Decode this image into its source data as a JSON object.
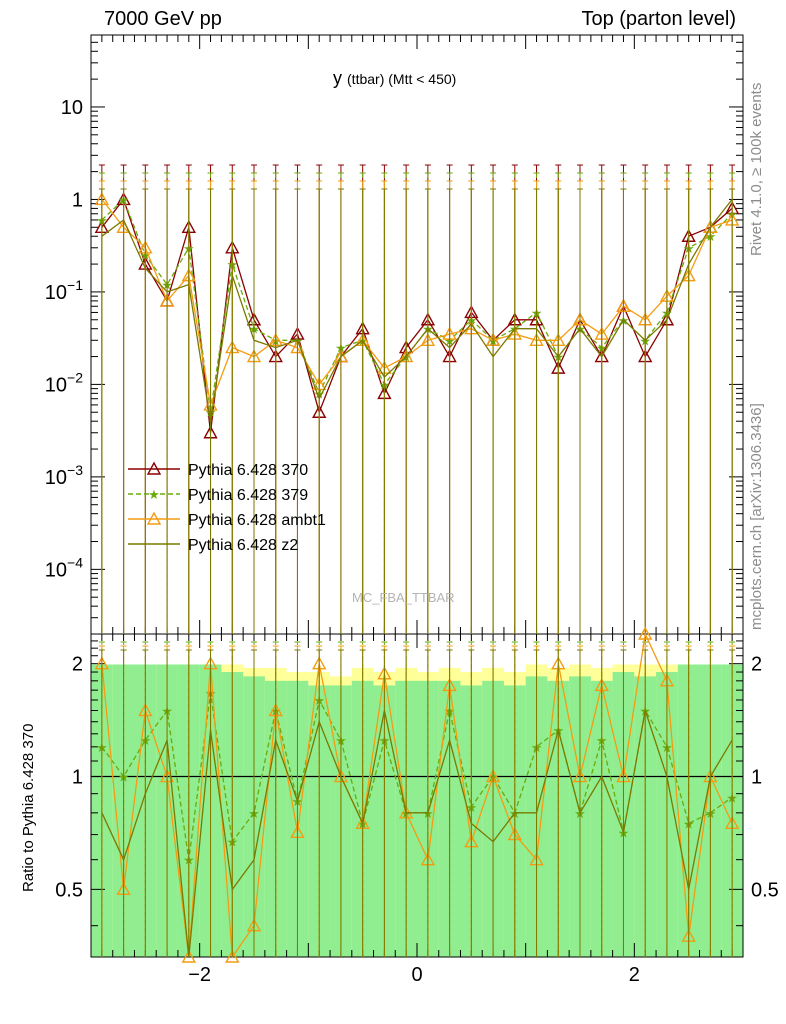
{
  "header": {
    "left": "7000 GeV pp",
    "right": "Top (parton level)"
  },
  "side_labels": {
    "rivet": "Rivet 4.1.0, ≥ 100k events",
    "mcplots": "mcplots.cern.ch [arXiv:1306.3436]"
  },
  "watermark": "MC_FBA_TTBAR",
  "colors": {
    "370": "#8b0000",
    "379": "#6aaa0a",
    "ambt1": "#f39c12",
    "z2": "#7a7a00",
    "band_green": "#90ee90",
    "band_yellow": "#ffff99"
  },
  "chart_data": [
    {
      "type": "line",
      "title": "y",
      "title_sub": "(ttbar) (Mtt < 450)",
      "xlabel": "",
      "ylabel": "",
      "xlim": [
        -3.0,
        3.0
      ],
      "ylim": [
        2e-05,
        60
      ],
      "yscale": "log",
      "x_ticks": [
        -2,
        0,
        2
      ],
      "y_ticks": [
        {
          "value": 10,
          "label": "10"
        },
        {
          "value": 1,
          "label": "1"
        },
        {
          "value": 0.1,
          "label": "10^-1"
        },
        {
          "value": 0.01,
          "label": "10^-2"
        },
        {
          "value": 0.001,
          "label": "10^-3"
        },
        {
          "value": 0.0001,
          "label": "10^-4"
        }
      ],
      "x": [
        -2.9,
        -2.7,
        -2.5,
        -2.3,
        -2.1,
        -1.9,
        -1.7,
        -1.5,
        -1.3,
        -1.1,
        -0.9,
        -0.7,
        -0.5,
        -0.3,
        -0.1,
        0.1,
        0.3,
        0.5,
        0.7,
        0.9,
        1.1,
        1.3,
        1.5,
        1.7,
        1.9,
        2.1,
        2.3,
        2.5,
        2.7,
        2.9
      ],
      "series": [
        {
          "name": "Pythia 6.428 370",
          "style": "solid",
          "marker": "open-triangle",
          "values": [
            0.5,
            1.0,
            0.2,
            0.08,
            0.5,
            0.003,
            0.3,
            0.05,
            0.02,
            0.035,
            0.005,
            0.02,
            0.04,
            0.008,
            0.025,
            0.05,
            0.02,
            0.06,
            0.03,
            0.05,
            0.05,
            0.015,
            0.05,
            0.02,
            0.07,
            0.02,
            0.05,
            0.4,
            0.5,
            0.8
          ]
        },
        {
          "name": "Pythia 6.428 379",
          "style": "dashed",
          "marker": "star",
          "values": [
            0.6,
            1.0,
            0.25,
            0.12,
            0.3,
            0.005,
            0.2,
            0.04,
            0.03,
            0.03,
            0.008,
            0.025,
            0.03,
            0.01,
            0.02,
            0.04,
            0.03,
            0.05,
            0.03,
            0.04,
            0.06,
            0.02,
            0.04,
            0.025,
            0.05,
            0.03,
            0.06,
            0.3,
            0.4,
            0.7
          ]
        },
        {
          "name": "Pythia 6.428 ambt1",
          "style": "solid",
          "marker": "open-triangle",
          "values": [
            1.0,
            0.5,
            0.3,
            0.08,
            0.15,
            0.006,
            0.025,
            0.02,
            0.03,
            0.025,
            0.01,
            0.02,
            0.03,
            0.015,
            0.02,
            0.03,
            0.035,
            0.04,
            0.03,
            0.035,
            0.03,
            0.03,
            0.05,
            0.035,
            0.07,
            0.05,
            0.09,
            0.15,
            0.5,
            0.6
          ]
        },
        {
          "name": "Pythia 6.428 z2",
          "style": "solid",
          "marker": "none",
          "values": [
            0.4,
            0.6,
            0.18,
            0.1,
            0.12,
            0.004,
            0.15,
            0.03,
            0.025,
            0.03,
            0.007,
            0.02,
            0.03,
            0.012,
            0.02,
            0.04,
            0.025,
            0.045,
            0.02,
            0.04,
            0.04,
            0.02,
            0.04,
            0.02,
            0.05,
            0.03,
            0.05,
            0.2,
            0.5,
            1.0
          ]
        }
      ],
      "legend": "center-left"
    },
    {
      "type": "line",
      "xlabel": "",
      "ylabel": "Ratio to Pythia 6.428 370",
      "xlim": [
        -3.0,
        3.0
      ],
      "ylim": [
        0.33,
        2.4
      ],
      "yscale": "log",
      "y_ticks": [
        {
          "value": 2,
          "label": "2"
        },
        {
          "value": 1,
          "label": "1"
        },
        {
          "value": 0.5,
          "label": "0.5"
        }
      ],
      "x_ticks": [
        {
          "value": -2,
          "label": "−2"
        },
        {
          "value": 0,
          "label": "0"
        },
        {
          "value": 2,
          "label": "2"
        }
      ],
      "reference_line": 1,
      "band_green_halfwidth": [
        0.99,
        0.99,
        0.99,
        0.99,
        0.99,
        0.99,
        0.9,
        0.85,
        0.8,
        0.8,
        0.75,
        0.75,
        0.8,
        0.75,
        0.8,
        0.8,
        0.8,
        0.75,
        0.8,
        0.75,
        0.85,
        0.8,
        0.85,
        0.8,
        0.9,
        0.85,
        0.9,
        0.99,
        0.99,
        0.99
      ],
      "band_yellow_halfwidth": [
        0.99,
        0.99,
        0.99,
        0.99,
        0.99,
        0.99,
        0.99,
        0.95,
        0.95,
        0.9,
        0.9,
        0.85,
        0.95,
        0.9,
        0.95,
        0.9,
        0.95,
        0.9,
        0.95,
        0.9,
        0.99,
        0.95,
        0.99,
        0.95,
        0.99,
        0.99,
        0.99,
        0.99,
        0.99,
        0.99
      ],
      "series": [
        {
          "name": "Pythia 6.428 379",
          "style": "dashed",
          "marker": "star",
          "values": [
            1.2,
            1.0,
            1.25,
            1.5,
            0.6,
            1.67,
            0.67,
            0.8,
            1.5,
            0.86,
            1.6,
            1.25,
            0.75,
            1.25,
            0.8,
            0.8,
            1.5,
            0.83,
            1.0,
            0.8,
            1.2,
            1.33,
            0.8,
            1.25,
            0.71,
            1.5,
            1.2,
            0.75,
            0.8,
            0.88
          ]
        },
        {
          "name": "Pythia 6.428 ambt1",
          "style": "solid",
          "marker": "open-triangle",
          "values": [
            2.0,
            0.5,
            1.5,
            1.0,
            0.3,
            2.0,
            0.083,
            0.4,
            1.5,
            0.71,
            2.0,
            1.0,
            0.75,
            1.88,
            0.8,
            0.6,
            1.75,
            0.67,
            1.0,
            0.7,
            0.6,
            2.0,
            1.0,
            1.75,
            1.0,
            2.5,
            1.8,
            0.375,
            1.0,
            0.75
          ]
        },
        {
          "name": "Pythia 6.428 z2",
          "style": "solid",
          "marker": "none",
          "values": [
            0.8,
            0.6,
            0.9,
            1.25,
            0.24,
            1.33,
            0.5,
            0.6,
            1.25,
            0.86,
            1.4,
            1.0,
            0.75,
            1.5,
            0.8,
            0.8,
            1.25,
            0.75,
            0.67,
            0.8,
            0.8,
            1.33,
            0.8,
            1.0,
            0.71,
            1.5,
            1.0,
            0.5,
            1.0,
            1.25
          ]
        }
      ]
    }
  ]
}
